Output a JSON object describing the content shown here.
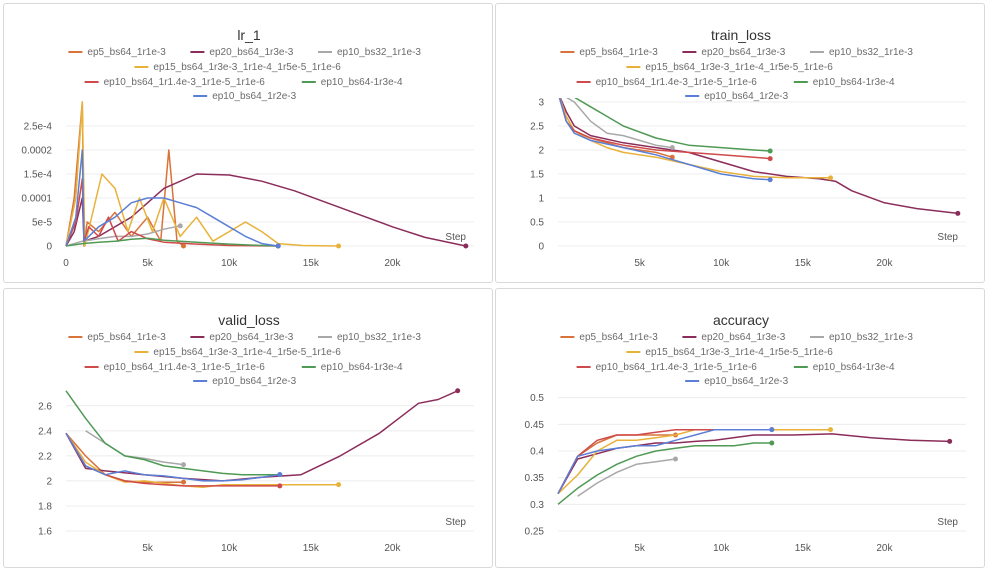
{
  "legend_order": [
    [
      "ep5_bs64_1r1e-3",
      "ep20_bs64_1r3e-3",
      "ep10_bs32_1r1e-3"
    ],
    [
      "ep15_bs64_1r3e-3_1r1e-4_1r5e-5_1r1e-6"
    ],
    [
      "ep10_bs64_1r1.4e-3_1r1e-5_1r1e-6",
      "ep10_bs64-1r3e-4"
    ],
    [
      "ep10_bs64_1r2e-3"
    ]
  ],
  "series_colors": {
    "ep5_bs64_1r1e-3": "#d9733a",
    "ep20_bs64_1r3e-3": "#8b2d5a",
    "ep10_bs32_1r1e-3": "#a8a8a8",
    "ep15_bs64_1r3e-3_1r1e-4_1r5e-5_1r1e-6": "#e8b23a",
    "ep10_bs64_1r1.4e-3_1r1e-5_1r1e-6": "#cf4a4a",
    "ep10_bs64-1r3e-4": "#4f9a54",
    "ep10_bs64_1r2e-3": "#5b7fd6"
  },
  "chart_data": [
    {
      "type": "line",
      "title": "lr_1",
      "xlabel": "Step",
      "xlim": [
        0,
        25000
      ],
      "ylim": [
        0,
        0.0003
      ],
      "x_ticks": [
        0,
        5000,
        10000,
        15000,
        20000
      ],
      "x_tick_labels": [
        "0",
        "5k",
        "10k",
        "15k",
        "20k"
      ],
      "y_ticks": [
        0,
        5e-05,
        0.0001,
        0.00015,
        0.0002,
        0.00025
      ],
      "y_tick_labels": [
        "0",
        "5e-5",
        "0.0001",
        "1.5e-4",
        "0.0002",
        "2.5e-4"
      ],
      "series": [
        {
          "name": "ep5_bs64_1r1e-3",
          "x": [
            0,
            500,
            1000,
            1100,
            1300,
            2000,
            3000,
            4000,
            5000,
            5800,
            6300,
            6800,
            7200
          ],
          "y": [
            0,
            0.0001,
            0.0003,
            0.0,
            5e-05,
            3e-05,
            7e-05,
            2e-05,
            6e-05,
            1e-05,
            0.0002,
            1e-05,
            0
          ]
        },
        {
          "name": "ep20_bs64_1r3e-3",
          "x": [
            0,
            500,
            1000,
            1100,
            2000,
            4000,
            6000,
            8000,
            10000,
            12000,
            14000,
            16000,
            18000,
            20000,
            22000,
            24500
          ],
          "y": [
            0,
            3e-05,
            0.0001,
            1e-05,
            2e-05,
            6e-05,
            0.00012,
            0.00015,
            0.000148,
            0.000135,
            0.000115,
            9e-05,
            6.5e-05,
            4e-05,
            1.8e-05,
            0
          ]
        },
        {
          "name": "ep10_bs32_1r1e-3",
          "x": [
            0,
            1000,
            2000,
            3000,
            4000,
            5000,
            6000,
            7000
          ],
          "y": [
            0,
            1e-05,
            1.5e-05,
            2e-05,
            2e-05,
            2.5e-05,
            3.5e-05,
            4.2e-05
          ]
        },
        {
          "name": "ep15_bs64_1r3e-3_1r1e-4_1r5e-5_1r1e-6",
          "x": [
            0,
            600,
            1000,
            1150,
            1500,
            2200,
            3000,
            3800,
            4500,
            5300,
            6000,
            7000,
            8000,
            9000,
            10000,
            11000,
            12000,
            13000,
            14500,
            16700
          ],
          "y": [
            0,
            0.0001,
            0.0003,
            0.0,
            5e-05,
            0.00015,
            0.00012,
            3e-05,
            0.0001,
            3e-05,
            0.0001,
            2e-05,
            6e-05,
            1e-05,
            3e-05,
            5e-05,
            3e-05,
            5e-06,
            1e-06,
            0
          ]
        },
        {
          "name": "ep10_bs64_1r1.4e-3_1r1e-5_1r1e-6",
          "x": [
            0,
            600,
            1000,
            1100,
            1400,
            2000,
            2600,
            3200,
            4000,
            5000,
            6000,
            8000,
            10000,
            13000
          ],
          "y": [
            0,
            5e-05,
            0.00014,
            1e-05,
            4e-05,
            2e-05,
            6e-05,
            1e-05,
            3e-05,
            1.5e-05,
            8e-06,
            4e-06,
            1e-06,
            0
          ]
        },
        {
          "name": "ep10_bs64-1r3e-4",
          "x": [
            0,
            1000,
            2000,
            3000,
            4000,
            5000,
            6000,
            8000,
            10000,
            12000,
            13000
          ],
          "y": [
            0,
            5e-06,
            8e-06,
            1e-05,
            1.4e-05,
            1.6e-05,
            1.2e-05,
            8e-06,
            4e-06,
            1e-06,
            0
          ]
        },
        {
          "name": "ep10_bs64_1r2e-3",
          "x": [
            0,
            600,
            1000,
            1100,
            2000,
            3000,
            4000,
            5000,
            6000,
            7000,
            8000,
            9000,
            10000,
            11000,
            12000,
            13000
          ],
          "y": [
            0,
            6e-05,
            0.0002,
            1e-05,
            4e-05,
            6e-05,
            9e-05,
            0.0001,
            0.0001,
            9e-05,
            8e-05,
            6e-05,
            4e-05,
            2e-05,
            5e-06,
            0
          ]
        }
      ]
    },
    {
      "type": "line",
      "title": "train_loss",
      "xlabel": "Step",
      "xlim": [
        0,
        25000
      ],
      "ylim": [
        0,
        3
      ],
      "x_ticks": [
        5000,
        10000,
        15000,
        20000
      ],
      "x_tick_labels": [
        "5k",
        "10k",
        "15k",
        "20k"
      ],
      "y_ticks": [
        0,
        0.5,
        1,
        1.5,
        2,
        2.5,
        3
      ],
      "y_tick_labels": [
        "0",
        "0.5",
        "1",
        "1.5",
        "2",
        "2.5",
        "3"
      ],
      "series": [
        {
          "name": "ep5_bs64_1r1e-3",
          "x": [
            0,
            500,
            1000,
            2000,
            3000,
            4000,
            5000,
            6000,
            7000
          ],
          "y": [
            3.2,
            2.7,
            2.4,
            2.25,
            2.15,
            2.05,
            2.0,
            1.95,
            1.85
          ]
        },
        {
          "name": "ep20_bs64_1r3e-3",
          "x": [
            0,
            500,
            1000,
            2000,
            4000,
            6000,
            8000,
            10000,
            12000,
            14000,
            16000,
            17000,
            18000,
            20000,
            22000,
            24500
          ],
          "y": [
            3.2,
            2.8,
            2.5,
            2.3,
            2.15,
            2.05,
            1.95,
            1.75,
            1.55,
            1.45,
            1.4,
            1.35,
            1.15,
            0.9,
            0.78,
            0.68
          ]
        },
        {
          "name": "ep10_bs32_1r1e-3",
          "x": [
            0,
            1000,
            2000,
            3000,
            4000,
            5000,
            6000,
            7000
          ],
          "y": [
            3.2,
            3.0,
            2.6,
            2.35,
            2.3,
            2.2,
            2.1,
            2.05
          ]
        },
        {
          "name": "ep15_bs64_1r3e-3_1r1e-4_1r5e-5_1r1e-6",
          "x": [
            0,
            500,
            1000,
            2000,
            3000,
            4000,
            6000,
            8000,
            10000,
            12000,
            14000,
            16000,
            16700
          ],
          "y": [
            3.2,
            2.7,
            2.4,
            2.2,
            2.05,
            1.95,
            1.85,
            1.7,
            1.55,
            1.45,
            1.42,
            1.42,
            1.42
          ]
        },
        {
          "name": "ep10_bs64_1r1.4e-3_1r1e-5_1r1e-6",
          "x": [
            0,
            500,
            1000,
            2000,
            4000,
            6000,
            8000,
            10000,
            12000,
            13000
          ],
          "y": [
            3.2,
            2.6,
            2.4,
            2.25,
            2.1,
            2.0,
            1.95,
            1.9,
            1.85,
            1.82
          ]
        },
        {
          "name": "ep10_bs64-1r3e-4",
          "x": [
            0,
            1000,
            2000,
            3000,
            4000,
            6000,
            8000,
            10000,
            12000,
            13000
          ],
          "y": [
            3.2,
            3.1,
            2.9,
            2.7,
            2.5,
            2.25,
            2.1,
            2.05,
            2.0,
            1.98
          ]
        },
        {
          "name": "ep10_bs64_1r2e-3",
          "x": [
            0,
            500,
            1000,
            2000,
            4000,
            6000,
            8000,
            10000,
            12000,
            13000
          ],
          "y": [
            3.2,
            2.6,
            2.35,
            2.2,
            2.05,
            1.9,
            1.7,
            1.5,
            1.4,
            1.38
          ]
        }
      ]
    },
    {
      "type": "line",
      "title": "valid_loss",
      "xlabel": "Step",
      "xlim": [
        0,
        25000
      ],
      "ylim": [
        1.6,
        2.75
      ],
      "x_ticks": [
        5000,
        10000,
        15000,
        20000
      ],
      "x_tick_labels": [
        "5k",
        "10k",
        "15k",
        "20k"
      ],
      "y_ticks": [
        1.6,
        1.8,
        2.0,
        2.2,
        2.4,
        2.6
      ],
      "y_tick_labels": [
        "1.6",
        "1.8",
        "2",
        "2.2",
        "2.4",
        "2.6"
      ],
      "series": [
        {
          "name": "ep5_bs64_1r1e-3",
          "x": [
            0,
            1200,
            2400,
            3600,
            4800,
            6000,
            7200
          ],
          "y": [
            2.38,
            2.2,
            2.05,
            2.0,
            1.99,
            1.99,
            1.99
          ]
        },
        {
          "name": "ep20_bs64_1r3e-3",
          "x": [
            0,
            1200,
            2400,
            4800,
            7200,
            9600,
            12000,
            14400,
            16800,
            19200,
            20400,
            21600,
            22800,
            24000
          ],
          "y": [
            2.38,
            2.1,
            2.08,
            2.05,
            2.02,
            2.0,
            2.03,
            2.05,
            2.2,
            2.38,
            2.5,
            2.62,
            2.65,
            2.72
          ]
        },
        {
          "name": "ep10_bs32_1r1e-3",
          "x": [
            1200,
            2400,
            3600,
            4800,
            6000,
            7200
          ],
          "y": [
            2.4,
            2.3,
            2.2,
            2.18,
            2.15,
            2.13
          ]
        },
        {
          "name": "ep15_bs64_1r3e-3_1r1e-4_1r5e-5_1r1e-6",
          "x": [
            0,
            1200,
            2400,
            3600,
            4800,
            6000,
            7200,
            8400,
            9600,
            10800,
            12000,
            13200,
            14400,
            15600,
            16700
          ],
          "y": [
            2.38,
            2.15,
            2.05,
            1.99,
            2.0,
            1.98,
            1.96,
            1.95,
            1.97,
            1.97,
            1.97,
            1.97,
            1.97,
            1.97,
            1.97
          ]
        },
        {
          "name": "ep10_bs64_1r1.4e-3_1r1e-5_1r1e-6",
          "x": [
            0,
            1200,
            2400,
            3600,
            4800,
            6000,
            7200,
            8400,
            9600,
            10800,
            12000,
            13100
          ],
          "y": [
            2.38,
            2.12,
            2.05,
            2.0,
            1.98,
            1.97,
            1.96,
            1.96,
            1.96,
            1.96,
            1.96,
            1.96
          ]
        },
        {
          "name": "ep10_bs64-1r3e-4",
          "x": [
            0,
            1200,
            2400,
            3600,
            4800,
            6000,
            7200,
            8400,
            9600,
            10800,
            12000,
            13100
          ],
          "y": [
            2.72,
            2.5,
            2.3,
            2.2,
            2.17,
            2.12,
            2.1,
            2.08,
            2.06,
            2.05,
            2.05,
            2.05
          ]
        },
        {
          "name": "ep10_bs64_1r2e-3",
          "x": [
            0,
            1200,
            2400,
            3600,
            4800,
            6000,
            7200,
            8400,
            9600,
            10800,
            12000,
            13100
          ],
          "y": [
            2.38,
            2.12,
            2.05,
            2.08,
            2.05,
            2.04,
            2.02,
            2.0,
            2.0,
            2.01,
            2.03,
            2.05
          ]
        }
      ]
    },
    {
      "type": "line",
      "title": "accuracy",
      "xlabel": "Step",
      "xlim": [
        0,
        25000
      ],
      "ylim": [
        0.25,
        0.52
      ],
      "x_ticks": [
        5000,
        10000,
        15000,
        20000
      ],
      "x_tick_labels": [
        "5k",
        "10k",
        "15k",
        "20k"
      ],
      "y_ticks": [
        0.25,
        0.3,
        0.35,
        0.4,
        0.45,
        0.5
      ],
      "y_tick_labels": [
        "0.25",
        "0.3",
        "0.35",
        "0.4",
        "0.45",
        "0.5"
      ],
      "series": [
        {
          "name": "ep5_bs64_1r1e-3",
          "x": [
            0,
            1200,
            2400,
            3600,
            4800,
            6000,
            7200
          ],
          "y": [
            0.32,
            0.39,
            0.415,
            0.43,
            0.43,
            0.43,
            0.43
          ]
        },
        {
          "name": "ep20_bs64_1r3e-3",
          "x": [
            0,
            1200,
            2400,
            3600,
            4800,
            6000,
            7200,
            8400,
            9600,
            12000,
            14400,
            16800,
            19200,
            21600,
            24000
          ],
          "y": [
            0.32,
            0.385,
            0.395,
            0.405,
            0.41,
            0.415,
            0.415,
            0.418,
            0.42,
            0.43,
            0.43,
            0.432,
            0.425,
            0.42,
            0.418
          ]
        },
        {
          "name": "ep10_bs32_1r1e-3",
          "x": [
            1200,
            2400,
            3600,
            4800,
            6000,
            7200
          ],
          "y": [
            0.315,
            0.34,
            0.36,
            0.375,
            0.38,
            0.385
          ]
        },
        {
          "name": "ep15_bs64_1r3e-3_1r1e-4_1r5e-5_1r1e-6",
          "x": [
            0,
            1200,
            2400,
            3600,
            4800,
            6000,
            7200,
            8400,
            9600,
            12000,
            14400,
            16700
          ],
          "y": [
            0.32,
            0.355,
            0.4,
            0.42,
            0.42,
            0.425,
            0.43,
            0.44,
            0.44,
            0.44,
            0.44,
            0.44
          ]
        },
        {
          "name": "ep10_bs64_1r1.4e-3_1r1e-5_1r1e-6",
          "x": [
            0,
            1200,
            2400,
            3600,
            4800,
            6000,
            7200,
            8400,
            9600,
            10800,
            12000,
            13100
          ],
          "y": [
            0.32,
            0.39,
            0.42,
            0.43,
            0.43,
            0.435,
            0.44,
            0.44,
            0.44,
            0.44,
            0.44,
            0.44
          ]
        },
        {
          "name": "ep10_bs64-1r3e-4",
          "x": [
            0,
            1200,
            2400,
            3600,
            4800,
            6000,
            7200,
            8400,
            9600,
            10800,
            12000,
            13100
          ],
          "y": [
            0.3,
            0.33,
            0.355,
            0.375,
            0.39,
            0.4,
            0.405,
            0.41,
            0.41,
            0.41,
            0.415,
            0.415
          ]
        },
        {
          "name": "ep10_bs64_1r2e-3",
          "x": [
            0,
            1200,
            2400,
            3600,
            4800,
            6000,
            7200,
            8400,
            9600,
            10800,
            12000,
            13100
          ],
          "y": [
            0.32,
            0.39,
            0.4,
            0.405,
            0.41,
            0.41,
            0.42,
            0.43,
            0.44,
            0.44,
            0.44,
            0.44
          ]
        }
      ]
    }
  ]
}
